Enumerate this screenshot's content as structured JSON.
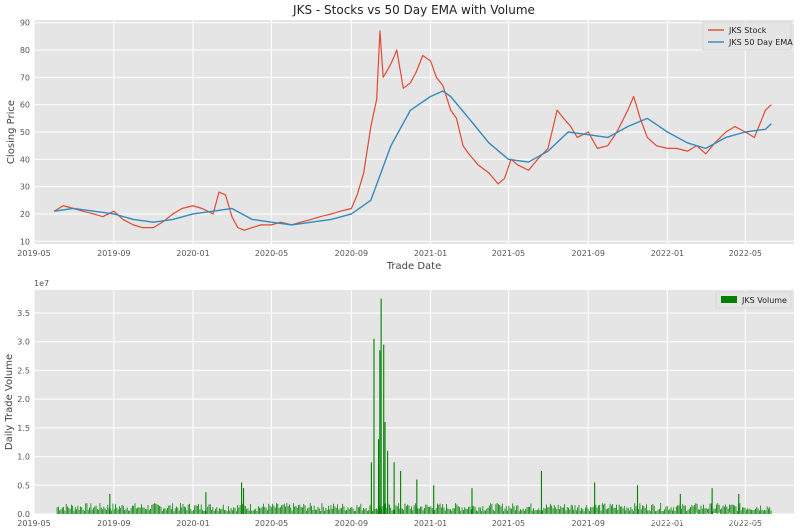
{
  "chart_data": [
    {
      "type": "line",
      "title": "JKS - Stocks vs 50 Day EMA with Volume",
      "xlabel": "Trade Date",
      "ylabel": "Closing Price",
      "xlim": [
        "2019-05-01",
        "2022-07-15"
      ],
      "ylim": [
        9,
        91
      ],
      "yticks": [
        10,
        20,
        30,
        40,
        50,
        60,
        70,
        80,
        90
      ],
      "xticks": [
        "2019-05",
        "2019-09",
        "2020-01",
        "2020-05",
        "2020-09",
        "2021-01",
        "2021-05",
        "2021-09",
        "2022-01",
        "2022-05"
      ],
      "grid": true,
      "legend": "top-right",
      "colors": {
        "stock": "#e24a33",
        "ema": "#348abd",
        "background": "#e5e5e5",
        "grid": "#ffffff"
      },
      "series": [
        {
          "name": "JKS Stock",
          "x": [
            "2019-06-01",
            "2019-06-15",
            "2019-07-01",
            "2019-07-15",
            "2019-08-01",
            "2019-08-15",
            "2019-09-01",
            "2019-09-15",
            "2019-10-01",
            "2019-10-15",
            "2019-11-01",
            "2019-11-15",
            "2019-12-01",
            "2019-12-15",
            "2020-01-01",
            "2020-01-15",
            "2020-02-01",
            "2020-02-10",
            "2020-02-20",
            "2020-03-01",
            "2020-03-10",
            "2020-03-20",
            "2020-04-01",
            "2020-04-15",
            "2020-05-01",
            "2020-05-15",
            "2020-06-01",
            "2020-06-15",
            "2020-07-01",
            "2020-07-15",
            "2020-08-01",
            "2020-08-15",
            "2020-09-01",
            "2020-09-10",
            "2020-09-20",
            "2020-10-01",
            "2020-10-10",
            "2020-10-15",
            "2020-10-20",
            "2020-10-25",
            "2020-11-01",
            "2020-11-10",
            "2020-11-20",
            "2020-12-01",
            "2020-12-10",
            "2020-12-20",
            "2021-01-01",
            "2021-01-10",
            "2021-01-20",
            "2021-02-01",
            "2021-02-10",
            "2021-02-20",
            "2021-03-01",
            "2021-03-15",
            "2021-04-01",
            "2021-04-15",
            "2021-04-25",
            "2021-05-05",
            "2021-05-15",
            "2021-06-01",
            "2021-06-15",
            "2021-07-01",
            "2021-07-15",
            "2021-07-25",
            "2021-08-05",
            "2021-08-15",
            "2021-09-01",
            "2021-09-15",
            "2021-10-01",
            "2021-10-15",
            "2021-11-01",
            "2021-11-10",
            "2021-11-20",
            "2021-12-01",
            "2021-12-15",
            "2022-01-01",
            "2022-01-15",
            "2022-02-01",
            "2022-02-15",
            "2022-03-01",
            "2022-03-15",
            "2022-04-01",
            "2022-04-15",
            "2022-05-01",
            "2022-05-15",
            "2022-06-01",
            "2022-06-10"
          ],
          "values": [
            21,
            23,
            22,
            21,
            20,
            19,
            21,
            18,
            16,
            15,
            15,
            17,
            20,
            22,
            23,
            22,
            20,
            28,
            27,
            19,
            15,
            14,
            15,
            16,
            16,
            17,
            16,
            17,
            18,
            19,
            20,
            21,
            22,
            27,
            35,
            52,
            62,
            87,
            70,
            72,
            75,
            80,
            66,
            68,
            72,
            78,
            76,
            70,
            67,
            58,
            55,
            45,
            42,
            38,
            35,
            31,
            33,
            40,
            38,
            36,
            40,
            44,
            58,
            55,
            52,
            48,
            50,
            44,
            45,
            50,
            58,
            63,
            55,
            48,
            45,
            44,
            44,
            43,
            45,
            42,
            46,
            50,
            52,
            50,
            48,
            58,
            60
          ]
        },
        {
          "name": "JKS 50 Day EMA",
          "x": [
            "2019-06-01",
            "2019-07-01",
            "2019-08-01",
            "2019-09-01",
            "2019-10-01",
            "2019-11-01",
            "2019-12-01",
            "2020-01-01",
            "2020-02-01",
            "2020-03-01",
            "2020-04-01",
            "2020-05-01",
            "2020-06-01",
            "2020-07-01",
            "2020-08-01",
            "2020-09-01",
            "2020-10-01",
            "2020-11-01",
            "2020-12-01",
            "2021-01-01",
            "2021-01-20",
            "2021-02-01",
            "2021-03-01",
            "2021-04-01",
            "2021-05-01",
            "2021-06-01",
            "2021-07-01",
            "2021-08-01",
            "2021-09-01",
            "2021-10-01",
            "2021-11-01",
            "2021-12-01",
            "2022-01-01",
            "2022-02-01",
            "2022-03-01",
            "2022-04-01",
            "2022-05-01",
            "2022-06-01",
            "2022-06-10"
          ],
          "values": [
            21,
            22,
            21,
            20,
            18,
            17,
            18,
            20,
            21,
            22,
            18,
            17,
            16,
            17,
            18,
            20,
            25,
            45,
            58,
            63,
            65,
            63,
            55,
            46,
            40,
            39,
            43,
            50,
            49,
            48,
            52,
            55,
            50,
            46,
            44,
            48,
            50,
            51,
            53
          ]
        }
      ]
    },
    {
      "type": "bar",
      "xlabel": "",
      "ylabel": "Daily Trade Volume",
      "offset_label": "1e7",
      "ylim": [
        0,
        3.9
      ],
      "yticks": [
        "0.0",
        "0.5",
        "1.0",
        "1.5",
        "2.0",
        "2.5",
        "3.0",
        "3.5"
      ],
      "xticks": [
        "2019-05",
        "2019-09",
        "2020-01",
        "2020-05",
        "2020-09",
        "2021-01",
        "2021-05",
        "2021-09",
        "2022-01",
        "2022-05"
      ],
      "grid": true,
      "legend": "top-right",
      "colors": {
        "bar": "#008000"
      },
      "series": [
        {
          "name": "JKS Volume",
          "unit": "1e7 shares",
          "x": [
            "2019-08-25",
            "2020-01-20",
            "2020-03-15",
            "2020-03-18",
            "2020-10-01",
            "2020-10-05",
            "2020-10-12",
            "2020-10-14",
            "2020-10-16",
            "2020-10-20",
            "2020-10-22",
            "2020-10-26",
            "2020-11-05",
            "2020-11-15",
            "2020-12-10",
            "2021-01-05",
            "2021-03-05",
            "2021-06-20",
            "2021-09-10",
            "2021-11-15",
            "2022-01-20",
            "2022-03-10",
            "2022-04-20"
          ],
          "values": [
            0.35,
            0.38,
            0.55,
            0.45,
            0.9,
            3.05,
            1.3,
            2.85,
            3.75,
            2.95,
            1.6,
            1.1,
            0.9,
            0.75,
            0.6,
            0.5,
            0.45,
            0.75,
            0.55,
            0.5,
            0.35,
            0.45,
            0.35
          ],
          "baseline": 0.12
        }
      ]
    }
  ],
  "watermark": "CSDN @实山确实prss\nwww.kzpho.online"
}
